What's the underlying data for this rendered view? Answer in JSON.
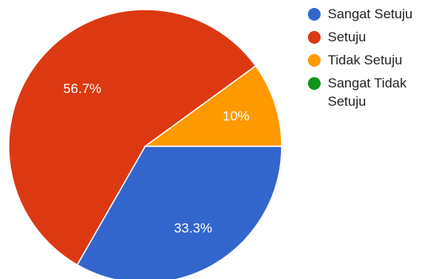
{
  "chart_data": {
    "type": "pie",
    "categories": [
      "Sangat Setuju",
      "Setuju",
      "Tidak Setuju",
      "Sangat Tidak Setuju"
    ],
    "values": [
      33.3,
      56.7,
      10,
      0
    ],
    "labels": [
      "33.3%",
      "56.7%",
      "10%",
      ""
    ],
    "colors": [
      "#3366cc",
      "#dc3912",
      "#ff9900",
      "#109618"
    ],
    "legend_position": "right"
  },
  "legend": {
    "items": [
      {
        "label": "Sangat Setuju",
        "color": "#3366cc"
      },
      {
        "label": "Setuju",
        "color": "#dc3912"
      },
      {
        "label": "Tidak Setuju",
        "color": "#ff9900"
      },
      {
        "label": "Sangat Tidak Setuju",
        "color": "#109618"
      }
    ]
  }
}
